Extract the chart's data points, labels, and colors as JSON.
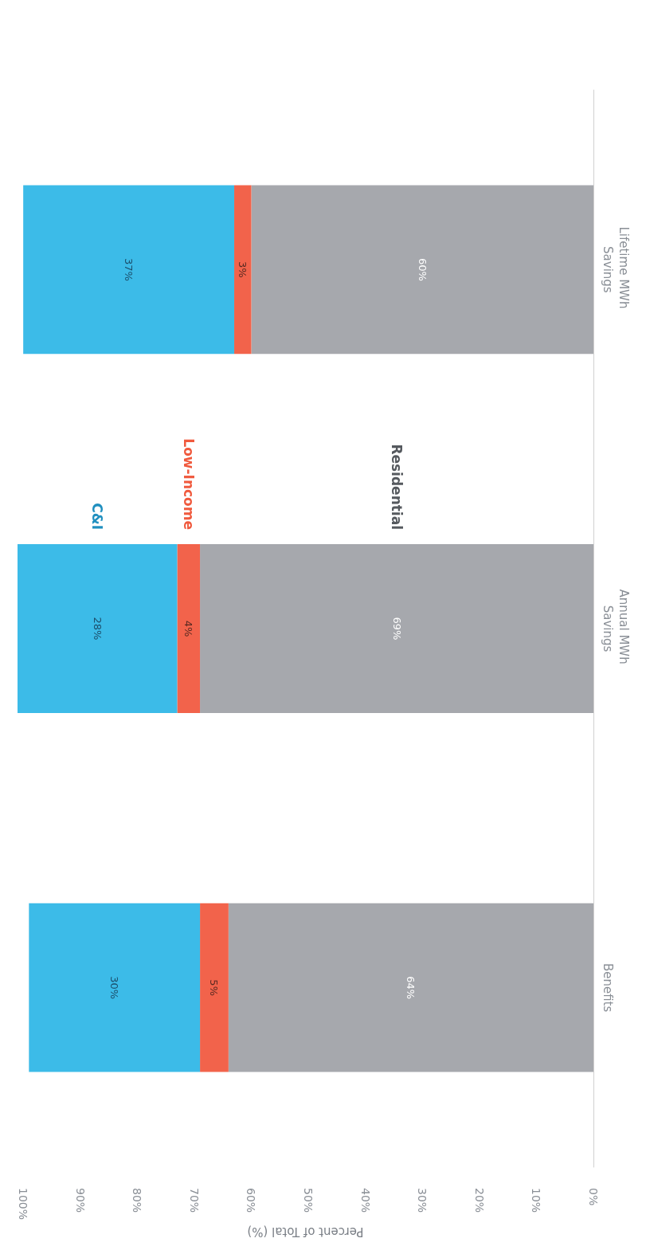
{
  "chart_data": {
    "type": "bar",
    "stacked": true,
    "orientation": "horizontal",
    "xlabel": "Percent of Total (%)",
    "categories": [
      "Lifetime MWh Savings",
      "Annual MWh Savings",
      "Benefits"
    ],
    "series": [
      {
        "name": "Residential",
        "color": "#a6a8ad",
        "values": [
          60,
          69,
          64
        ],
        "value_labels": [
          "60%",
          "69%",
          "64%"
        ]
      },
      {
        "name": "Low-Income",
        "color": "#f2634b",
        "values": [
          3,
          4,
          5
        ],
        "value_labels": [
          "3%",
          "4%",
          "5%"
        ]
      },
      {
        "name": "C&I",
        "color": "#3cbbe8",
        "values": [
          37,
          28,
          30
        ],
        "value_labels": [
          "37%",
          "28%",
          "30%"
        ]
      }
    ],
    "xlim": [
      101,
      0
    ],
    "xticks": [
      {
        "value": 0,
        "label": "0%"
      },
      {
        "value": 10,
        "label": "10%"
      },
      {
        "value": 20,
        "label": "20%"
      },
      {
        "value": 30,
        "label": "30%"
      },
      {
        "value": 40,
        "label": "40%"
      },
      {
        "value": 50,
        "label": "50%"
      },
      {
        "value": 60,
        "label": "60%"
      },
      {
        "value": 70,
        "label": "70%"
      },
      {
        "value": 80,
        "label": "80%"
      },
      {
        "value": 90,
        "label": "90%"
      },
      {
        "value": 100,
        "label": "100%"
      }
    ],
    "grid": false
  }
}
